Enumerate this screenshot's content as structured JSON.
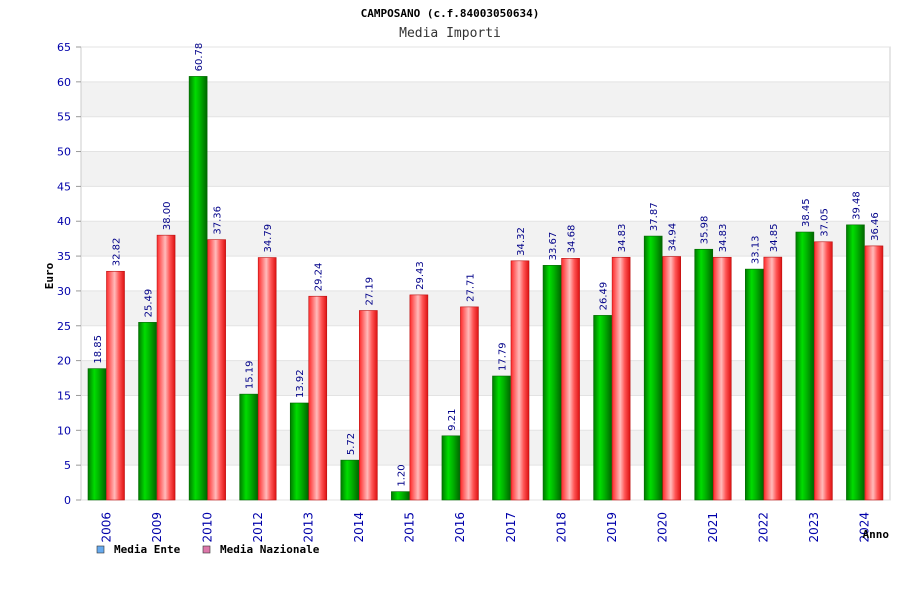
{
  "chart_data": {
    "type": "bar",
    "title": "CAMPOSANO (c.f.84003050634)",
    "subtitle": "Media Importi",
    "ylabel": "Euro",
    "xlabel": "Anno",
    "ylim": [
      0,
      65
    ],
    "yticks": [
      0,
      5,
      10,
      15,
      20,
      25,
      30,
      35,
      40,
      45,
      50,
      55,
      60,
      65
    ],
    "grid": true,
    "legend_position": "bottom-left",
    "categories": [
      "2006",
      "2009",
      "2010",
      "2012",
      "2013",
      "2014",
      "2015",
      "2016",
      "2017",
      "2018",
      "2019",
      "2020",
      "2021",
      "2022",
      "2023",
      "2024"
    ],
    "series": [
      {
        "name": "Media Ente",
        "color": "#00aa00",
        "legend_color": "#66aaee",
        "values": [
          18.85,
          25.49,
          60.78,
          15.19,
          13.92,
          5.72,
          1.2,
          9.21,
          17.79,
          33.67,
          26.49,
          37.87,
          35.98,
          33.13,
          38.45,
          39.48
        ],
        "labels": [
          "18.85",
          "25.49",
          "60.78",
          "15.19",
          "13.92",
          "5.72",
          "1.20",
          "9.21",
          "17.79",
          "33.67",
          "26.49",
          "37.87",
          "35.98",
          "33.13",
          "38.45",
          "39.48"
        ]
      },
      {
        "name": "Media Nazionale",
        "color": "#ee2222",
        "legend_color": "#dd77aa",
        "values": [
          32.82,
          38.0,
          37.36,
          34.79,
          29.24,
          27.19,
          29.43,
          27.71,
          34.32,
          34.68,
          34.83,
          34.94,
          34.83,
          34.85,
          37.05,
          36.46
        ],
        "labels": [
          "32.82",
          "38.00",
          "37.36",
          "34.79",
          "29.24",
          "27.19",
          "29.43",
          "27.71",
          "34.32",
          "34.68",
          "34.83",
          "34.94",
          "34.83",
          "34.85",
          "37.05",
          "36.46"
        ]
      }
    ]
  }
}
